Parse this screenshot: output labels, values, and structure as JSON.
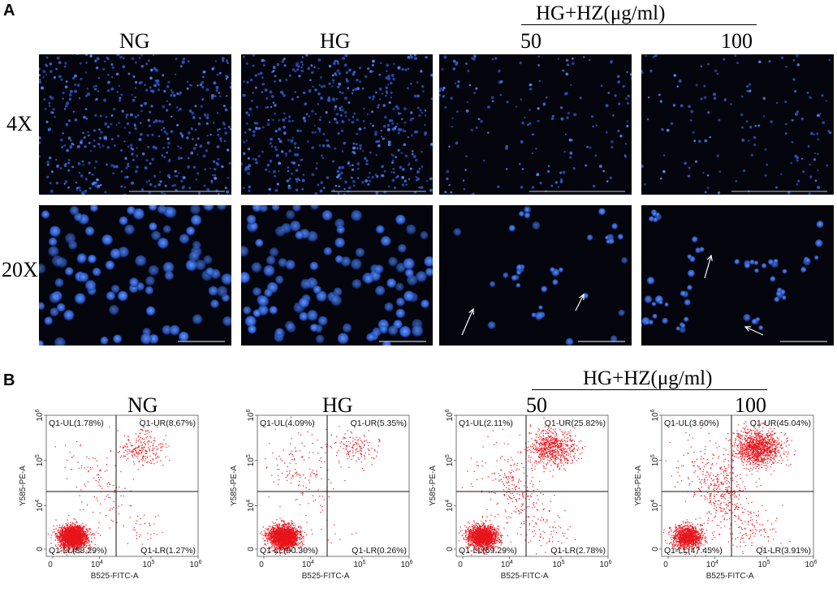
{
  "panel_a": {
    "letter": "A",
    "group_header": "HG+HZ(μg/ml)",
    "columns": [
      "NG",
      "HG",
      "50",
      "100"
    ],
    "rows": [
      "4X",
      "20X"
    ],
    "cell_density_4x": [
      520,
      560,
      170,
      140
    ],
    "cell_density_20x": [
      95,
      110,
      22,
      18
    ]
  },
  "panel_b": {
    "letter": "B",
    "group_header": "HG+HZ(μg/ml)",
    "titles": [
      "NG",
      "HG",
      "50",
      "100"
    ],
    "x_axis_label": "B525-FITC-A",
    "y_axis_label": "Y585-PE-A",
    "x_ticks": [
      "0",
      "10",
      "10",
      "10"
    ],
    "x_tick_exps": [
      "",
      "4",
      "5",
      "6"
    ],
    "y_ticks": [
      "0",
      "10",
      "10",
      "10"
    ],
    "y_tick_exps": [
      "",
      "4",
      "5",
      "6"
    ],
    "plots": [
      {
        "UL": "Q1-UL(1.78%)",
        "UR": "Q1-UR(8.67%)",
        "LL": "Q1-LL(88.29%)",
        "LR": "Q1-LR(1.27%)",
        "fractions": {
          "UL": 1.78,
          "UR": 8.67,
          "LL": 88.29,
          "LR": 1.27
        }
      },
      {
        "UL": "Q1-UL(4.09%)",
        "UR": "Q1-UR(5.35%)",
        "LL": "Q1-LL(90.30%)",
        "LR": "Q1-LR(0.26%)",
        "fractions": {
          "UL": 4.09,
          "UR": 5.35,
          "LL": 90.3,
          "LR": 0.26
        }
      },
      {
        "UL": "Q1-UL(2.11%)",
        "UR": "Q1-UR(25.82%)",
        "LL": "Q1-LL(69.29%)",
        "LR": "Q1-LR(2.78%)",
        "fractions": {
          "UL": 2.11,
          "UR": 25.82,
          "LL": 69.29,
          "LR": 2.78
        }
      },
      {
        "UL": "Q1-UL(3.60%)",
        "UR": "Q1-UR(45.04%)",
        "LL": "Q1-LL(47.45%)",
        "LR": "Q1-LR(3.91%)",
        "fractions": {
          "UL": 3.6,
          "UR": 45.04,
          "LL": 47.45,
          "LR": 3.91
        }
      }
    ],
    "dot_color": "#e8141c"
  },
  "colors": {
    "nucleus": "#2a5fd0",
    "micro_bg": "#03040c"
  }
}
